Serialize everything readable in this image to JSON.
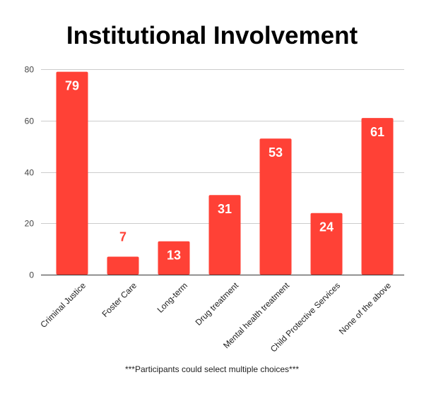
{
  "chart_data": {
    "type": "bar",
    "title": "Institutional Involvement",
    "categories": [
      "Criminal Justice",
      "Foster Care",
      "Long-term",
      "Drug treatment",
      "Mental health treatment",
      "Child Protective Services",
      "None of the above"
    ],
    "values": [
      79,
      7,
      13,
      31,
      53,
      24,
      61
    ],
    "data_labels": [
      "79",
      "7",
      "13",
      "31",
      "53",
      "24",
      "61"
    ],
    "ylim": [
      0,
      80
    ],
    "yticks": [
      "0",
      "20",
      "40",
      "60",
      "80"
    ],
    "xlabel": "",
    "ylabel": "",
    "grid": true,
    "legend": "none",
    "bar_color": "#ff4136",
    "label_inside_color": "#ffffff",
    "label_outside_color": "#ff4136"
  },
  "footnote": "***Participants could select multiple choices***"
}
